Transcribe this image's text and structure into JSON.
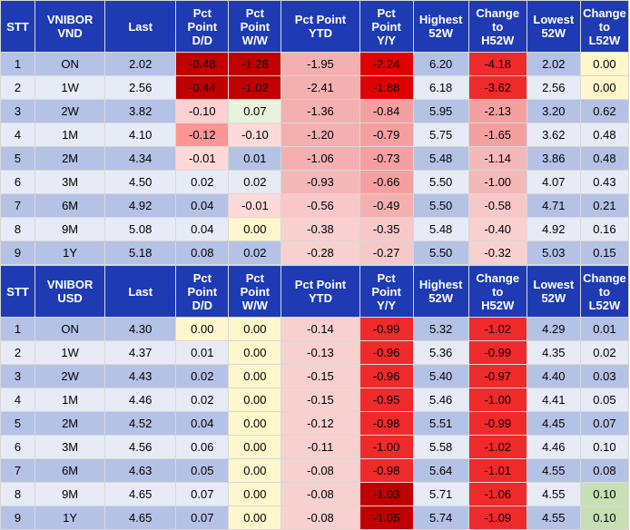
{
  "tables": [
    {
      "headers": [
        [
          "STT"
        ],
        [
          "VNIBOR",
          "VND"
        ],
        [
          "Last"
        ],
        [
          "Pct",
          "Point",
          "D/D"
        ],
        [
          "Pct",
          "Point",
          "W/W"
        ],
        [
          "Pct Point",
          "YTD"
        ],
        [
          "Pct",
          "Point",
          "Y/Y"
        ],
        [
          "Highest",
          "52W"
        ],
        [
          "Change",
          "to",
          "H52W"
        ],
        [
          "Lowest",
          "52W"
        ],
        [
          "Change",
          "to",
          "L52W"
        ]
      ],
      "rows": [
        {
          "cells": [
            "1",
            "ON",
            "2.02",
            "-0.48",
            "-1.28",
            "-1.95",
            "-2.24",
            "6.20",
            "-4.18",
            "2.02",
            "0.00"
          ],
          "bg": [
            "#b4c2e6",
            "#b4c2e6",
            "#b4c2e6",
            "#c00000",
            "#c00000",
            "#f4b0b0",
            "#e00000",
            "#b4c2e6",
            "#ee2a2a",
            "#b4c2e6",
            "#fff7cc"
          ]
        },
        {
          "cells": [
            "2",
            "1W",
            "2.56",
            "-0.44",
            "-1.02",
            "-2.41",
            "-1.88",
            "6.18",
            "-3.62",
            "2.56",
            "0.00"
          ],
          "bg": [
            "#e6ebf5",
            "#e6ebf5",
            "#e6ebf5",
            "#c00000",
            "#c00000",
            "#f4b0b0",
            "#e00000",
            "#e6ebf5",
            "#ee2a2a",
            "#e6ebf5",
            "#fff7cc"
          ]
        },
        {
          "cells": [
            "3",
            "2W",
            "3.82",
            "-0.10",
            "0.07",
            "-1.36",
            "-0.84",
            "5.95",
            "-2.13",
            "3.20",
            "0.62"
          ],
          "bg": [
            "#b4c2e6",
            "#b4c2e6",
            "#b4c2e6",
            "#ffd0d0",
            "#e8f2dc",
            "#f4b0b0",
            "#f4a0a0",
            "#b4c2e6",
            "#f4a0a0",
            "#b4c2e6",
            "#b4c2e6"
          ]
        },
        {
          "cells": [
            "4",
            "1M",
            "4.10",
            "-0.12",
            "-0.10",
            "-1.20",
            "-0.79",
            "5.75",
            "-1.65",
            "3.62",
            "0.48"
          ],
          "bg": [
            "#e6ebf5",
            "#e6ebf5",
            "#e6ebf5",
            "#ff9494",
            "#ffd8d8",
            "#f4b0b0",
            "#f4a0a0",
            "#e6ebf5",
            "#f4a0a0",
            "#e6ebf5",
            "#e6ebf5"
          ]
        },
        {
          "cells": [
            "5",
            "2M",
            "4.34",
            "-0.01",
            "0.01",
            "-1.06",
            "-0.73",
            "5.48",
            "-1.14",
            "3.86",
            "0.48"
          ],
          "bg": [
            "#b4c2e6",
            "#b4c2e6",
            "#b4c2e6",
            "#ffd8d8",
            "#b4c2e6",
            "#f4b0b0",
            "#f4a0a0",
            "#b4c2e6",
            "#f4b8b8",
            "#b4c2e6",
            "#b4c2e6"
          ]
        },
        {
          "cells": [
            "6",
            "3M",
            "4.50",
            "0.02",
            "0.02",
            "-0.93",
            "-0.66",
            "5.50",
            "-1.00",
            "4.07",
            "0.43"
          ],
          "bg": [
            "#e6ebf5",
            "#e6ebf5",
            "#e6ebf5",
            "#e6ebf5",
            "#e6ebf5",
            "#f4b8b8",
            "#f4a0a0",
            "#e6ebf5",
            "#f4b8b8",
            "#e6ebf5",
            "#e6ebf5"
          ]
        },
        {
          "cells": [
            "7",
            "6M",
            "4.92",
            "0.04",
            "-0.01",
            "-0.56",
            "-0.49",
            "5.50",
            "-0.58",
            "4.71",
            "0.21"
          ],
          "bg": [
            "#b4c2e6",
            "#b4c2e6",
            "#b4c2e6",
            "#b4c2e6",
            "#ffd8d8",
            "#f8c8c8",
            "#f4b0b0",
            "#b4c2e6",
            "#f8c8c8",
            "#b4c2e6",
            "#b4c2e6"
          ]
        },
        {
          "cells": [
            "8",
            "9M",
            "5.08",
            "0.04",
            "0.00",
            "-0.38",
            "-0.35",
            "5.48",
            "-0.40",
            "4.92",
            "0.16"
          ],
          "bg": [
            "#e6ebf5",
            "#e6ebf5",
            "#e6ebf5",
            "#e6ebf5",
            "#fff7cc",
            "#f8d0d0",
            "#f8c8c8",
            "#e6ebf5",
            "#f8d0d0",
            "#e6ebf5",
            "#e6ebf5"
          ]
        },
        {
          "cells": [
            "9",
            "1Y",
            "5.18",
            "0.08",
            "0.02",
            "-0.28",
            "-0.27",
            "5.50",
            "-0.32",
            "5.03",
            "0.15"
          ],
          "bg": [
            "#b4c2e6",
            "#b4c2e6",
            "#b4c2e6",
            "#b4c2e6",
            "#b4c2e6",
            "#f8d0d0",
            "#f8c8c8",
            "#b4c2e6",
            "#f8d0d0",
            "#b4c2e6",
            "#b4c2e6"
          ]
        }
      ]
    },
    {
      "headers": [
        [
          "STT"
        ],
        [
          "VNIBOR",
          "USD"
        ],
        [
          "Last"
        ],
        [
          "Pct",
          "Point",
          "D/D"
        ],
        [
          "Pct",
          "Point",
          "W/W"
        ],
        [
          "Pct Point",
          "YTD"
        ],
        [
          "Pct",
          "Point",
          "Y/Y"
        ],
        [
          "Highest",
          "52W"
        ],
        [
          "Change",
          "to",
          "H52W"
        ],
        [
          "Lowest",
          "52W"
        ],
        [
          "Change",
          "to",
          "L52W"
        ]
      ],
      "rows": [
        {
          "cells": [
            "1",
            "ON",
            "4.30",
            "0.00",
            "0.00",
            "-0.14",
            "-0.99",
            "5.32",
            "-1.02",
            "4.29",
            "0.01"
          ],
          "bg": [
            "#b4c2e6",
            "#b4c2e6",
            "#b4c2e6",
            "#fff7cc",
            "#fff7cc",
            "#f8d0d0",
            "#ee2a2a",
            "#b4c2e6",
            "#ee2a2a",
            "#b4c2e6",
            "#b4c2e6"
          ]
        },
        {
          "cells": [
            "2",
            "1W",
            "4.37",
            "0.01",
            "0.00",
            "-0.13",
            "-0.96",
            "5.36",
            "-0.99",
            "4.35",
            "0.02"
          ],
          "bg": [
            "#e6ebf5",
            "#e6ebf5",
            "#e6ebf5",
            "#e6ebf5",
            "#fff7cc",
            "#f8d0d0",
            "#ee2a2a",
            "#e6ebf5",
            "#ee2a2a",
            "#e6ebf5",
            "#e6ebf5"
          ]
        },
        {
          "cells": [
            "3",
            "2W",
            "4.43",
            "0.02",
            "0.00",
            "-0.15",
            "-0.96",
            "5.40",
            "-0.97",
            "4.40",
            "0.03"
          ],
          "bg": [
            "#b4c2e6",
            "#b4c2e6",
            "#b4c2e6",
            "#b4c2e6",
            "#fff7cc",
            "#f8d0d0",
            "#ee2a2a",
            "#b4c2e6",
            "#ee2a2a",
            "#b4c2e6",
            "#b4c2e6"
          ]
        },
        {
          "cells": [
            "4",
            "1M",
            "4.46",
            "0.02",
            "0.00",
            "-0.15",
            "-0.95",
            "5.46",
            "-1.00",
            "4.41",
            "0.05"
          ],
          "bg": [
            "#e6ebf5",
            "#e6ebf5",
            "#e6ebf5",
            "#e6ebf5",
            "#fff7cc",
            "#f8d0d0",
            "#ee2a2a",
            "#e6ebf5",
            "#ee2a2a",
            "#e6ebf5",
            "#e6ebf5"
          ]
        },
        {
          "cells": [
            "5",
            "2M",
            "4.52",
            "0.04",
            "0.00",
            "-0.12",
            "-0.98",
            "5.51",
            "-0.99",
            "4.45",
            "0.07"
          ],
          "bg": [
            "#b4c2e6",
            "#b4c2e6",
            "#b4c2e6",
            "#b4c2e6",
            "#fff7cc",
            "#f8d0d0",
            "#ee2a2a",
            "#b4c2e6",
            "#ee2a2a",
            "#b4c2e6",
            "#b4c2e6"
          ]
        },
        {
          "cells": [
            "6",
            "3M",
            "4.56",
            "0.06",
            "0.00",
            "-0.11",
            "-1.00",
            "5.58",
            "-1.02",
            "4.46",
            "0.10"
          ],
          "bg": [
            "#e6ebf5",
            "#e6ebf5",
            "#e6ebf5",
            "#e6ebf5",
            "#fff7cc",
            "#f8d0d0",
            "#ee2a2a",
            "#e6ebf5",
            "#ee2a2a",
            "#e6ebf5",
            "#e6ebf5"
          ]
        },
        {
          "cells": [
            "7",
            "6M",
            "4.63",
            "0.05",
            "0.00",
            "-0.08",
            "-0.98",
            "5.64",
            "-1.01",
            "4.55",
            "0.08"
          ],
          "bg": [
            "#b4c2e6",
            "#b4c2e6",
            "#b4c2e6",
            "#b4c2e6",
            "#fff7cc",
            "#f8d0d0",
            "#ee2a2a",
            "#b4c2e6",
            "#ee2a2a",
            "#b4c2e6",
            "#b4c2e6"
          ]
        },
        {
          "cells": [
            "8",
            "9M",
            "4.65",
            "0.07",
            "0.00",
            "-0.08",
            "-1.03",
            "5.71",
            "-1.06",
            "4.55",
            "0.10"
          ],
          "bg": [
            "#e6ebf5",
            "#e6ebf5",
            "#e6ebf5",
            "#e6ebf5",
            "#fff7cc",
            "#f8d0d0",
            "#c00000",
            "#e6ebf5",
            "#ee2a2a",
            "#e6ebf5",
            "#c6e0b4"
          ]
        },
        {
          "cells": [
            "9",
            "1Y",
            "4.65",
            "0.07",
            "0.00",
            "-0.08",
            "-1.05",
            "5.74",
            "-1.09",
            "4.55",
            "0.10"
          ],
          "bg": [
            "#b4c2e6",
            "#b4c2e6",
            "#b4c2e6",
            "#b4c2e6",
            "#fff7cc",
            "#f8d0d0",
            "#c00000",
            "#b4c2e6",
            "#ee2a2a",
            "#b4c2e6",
            "#c6e0b4"
          ]
        }
      ]
    }
  ]
}
